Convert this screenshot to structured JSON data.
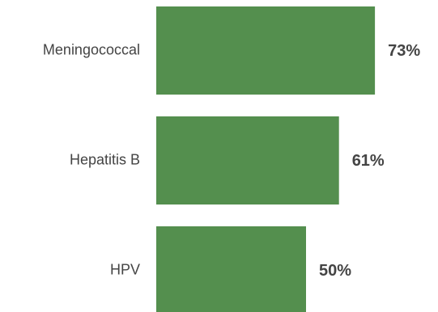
{
  "chart_data": {
    "type": "bar",
    "orientation": "horizontal",
    "categories": [
      "Meningococcal",
      "Hepatitis B",
      "HPV"
    ],
    "values": [
      73,
      61,
      50
    ],
    "value_labels": [
      "73%",
      "61%",
      "50%"
    ],
    "unit": "%",
    "grid": false,
    "legend": "none",
    "bar_color": "#548f4e",
    "text_color": "#444444"
  }
}
